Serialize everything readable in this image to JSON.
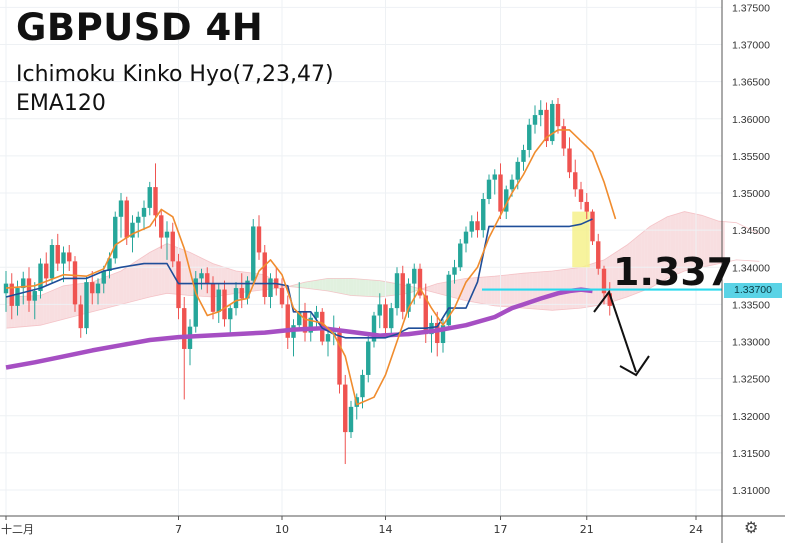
{
  "chart_data": {
    "type": "candlestick",
    "title": "GBPUSD 4H",
    "indicators": [
      "Ichimoku Kinko Hyo(7,23,47)",
      "EMA120"
    ],
    "ylim": [
      1.3065,
      1.376
    ],
    "y_ticks": [
      "1.37500",
      "1.37000",
      "1.36500",
      "1.36000",
      "1.35500",
      "1.35000",
      "1.34500",
      "1.34000",
      "1.33500",
      "1.33000",
      "1.32500",
      "1.32000",
      "1.31500",
      "1.31000"
    ],
    "x_ticks": [
      {
        "bar": 0,
        "label": "十二月"
      },
      {
        "bar": 30,
        "label": "7"
      },
      {
        "bar": 48,
        "label": "10"
      },
      {
        "bar": 66,
        "label": "14"
      },
      {
        "bar": 86,
        "label": "17"
      },
      {
        "bar": 101,
        "label": "21"
      },
      {
        "bar": 120,
        "label": "24"
      }
    ],
    "current_price": "1.33700",
    "annotation": "1.337",
    "key_level": 1.337,
    "colors": {
      "up": "#26a69a",
      "down": "#ef5350",
      "tenkan": "#f08c2e",
      "kijun": "#1f4e99",
      "ema": "#a64fc3",
      "level": "#2bd9ee",
      "cloud_bear": "#f6d3d6",
      "cloud_bull": "#d7ecd4",
      "highlight": "#f5f084"
    },
    "candles": [
      [
        1.3365,
        1.3395,
        1.334,
        1.3378
      ],
      [
        1.3378,
        1.3392,
        1.333,
        1.3348
      ],
      [
        1.3348,
        1.3382,
        1.3335,
        1.3372
      ],
      [
        1.3372,
        1.3394,
        1.335,
        1.3385
      ],
      [
        1.3385,
        1.34,
        1.334,
        1.3355
      ],
      [
        1.3355,
        1.338,
        1.333,
        1.3368
      ],
      [
        1.3368,
        1.3412,
        1.3358,
        1.3405
      ],
      [
        1.3405,
        1.342,
        1.3375,
        1.3385
      ],
      [
        1.3385,
        1.3438,
        1.3378,
        1.343
      ],
      [
        1.343,
        1.3445,
        1.3395,
        1.3405
      ],
      [
        1.3405,
        1.3428,
        1.338,
        1.342
      ],
      [
        1.342,
        1.343,
        1.3395,
        1.3408
      ],
      [
        1.3408,
        1.3415,
        1.334,
        1.335
      ],
      [
        1.335,
        1.3362,
        1.3305,
        1.3318
      ],
      [
        1.3318,
        1.3388,
        1.331,
        1.338
      ],
      [
        1.338,
        1.3395,
        1.335,
        1.3365
      ],
      [
        1.3365,
        1.3385,
        1.335,
        1.3378
      ],
      [
        1.3378,
        1.3402,
        1.3365,
        1.3395
      ],
      [
        1.3395,
        1.342,
        1.3385,
        1.3412
      ],
      [
        1.3412,
        1.3475,
        1.3405,
        1.3468
      ],
      [
        1.3468,
        1.35,
        1.344,
        1.349
      ],
      [
        1.349,
        1.3495,
        1.343,
        1.344
      ],
      [
        1.344,
        1.347,
        1.342,
        1.346
      ],
      [
        1.346,
        1.3475,
        1.344,
        1.3468
      ],
      [
        1.3468,
        1.349,
        1.345,
        1.348
      ],
      [
        1.348,
        1.3515,
        1.347,
        1.3508
      ],
      [
        1.3508,
        1.354,
        1.3455,
        1.347
      ],
      [
        1.347,
        1.3478,
        1.3425,
        1.344
      ],
      [
        1.344,
        1.3462,
        1.341,
        1.3448
      ],
      [
        1.3448,
        1.346,
        1.34,
        1.3408
      ],
      [
        1.3408,
        1.3418,
        1.333,
        1.3345
      ],
      [
        1.3345,
        1.336,
        1.3222,
        1.329
      ],
      [
        1.329,
        1.333,
        1.3268,
        1.332
      ],
      [
        1.332,
        1.3395,
        1.3312,
        1.3385
      ],
      [
        1.3385,
        1.3398,
        1.337,
        1.3392
      ],
      [
        1.3392,
        1.34,
        1.3365,
        1.3378
      ],
      [
        1.3378,
        1.3388,
        1.333,
        1.334
      ],
      [
        1.334,
        1.3378,
        1.3325,
        1.337
      ],
      [
        1.337,
        1.3382,
        1.332,
        1.333
      ],
      [
        1.333,
        1.335,
        1.331,
        1.3345
      ],
      [
        1.3345,
        1.338,
        1.3335,
        1.3372
      ],
      [
        1.3372,
        1.3392,
        1.3345,
        1.3358
      ],
      [
        1.3358,
        1.3388,
        1.335,
        1.3382
      ],
      [
        1.3382,
        1.3465,
        1.3375,
        1.3455
      ],
      [
        1.3455,
        1.347,
        1.341,
        1.342
      ],
      [
        1.342,
        1.343,
        1.335,
        1.336
      ],
      [
        1.336,
        1.3392,
        1.3345,
        1.3385
      ],
      [
        1.3385,
        1.34,
        1.3362,
        1.3372
      ],
      [
        1.3372,
        1.3385,
        1.3345,
        1.335
      ],
      [
        1.335,
        1.3362,
        1.329,
        1.3305
      ],
      [
        1.3305,
        1.333,
        1.328,
        1.3322
      ],
      [
        1.3322,
        1.338,
        1.3315,
        1.334
      ],
      [
        1.334,
        1.3352,
        1.33,
        1.3312
      ],
      [
        1.3312,
        1.334,
        1.33,
        1.3332
      ],
      [
        1.3332,
        1.3348,
        1.3318,
        1.334
      ],
      [
        1.334,
        1.3345,
        1.3295,
        1.33
      ],
      [
        1.33,
        1.332,
        1.328,
        1.331
      ],
      [
        1.331,
        1.3335,
        1.3295,
        1.3312
      ],
      [
        1.3312,
        1.332,
        1.323,
        1.3242
      ],
      [
        1.3242,
        1.3255,
        1.3135,
        1.3178
      ],
      [
        1.3178,
        1.322,
        1.317,
        1.3212
      ],
      [
        1.3212,
        1.323,
        1.3195,
        1.3225
      ],
      [
        1.3225,
        1.3262,
        1.321,
        1.3255
      ],
      [
        1.3255,
        1.331,
        1.3245,
        1.33
      ],
      [
        1.33,
        1.334,
        1.3292,
        1.3335
      ],
      [
        1.3335,
        1.3365,
        1.3318,
        1.335
      ],
      [
        1.335,
        1.3358,
        1.3305,
        1.3318
      ],
      [
        1.3318,
        1.3352,
        1.331,
        1.3345
      ],
      [
        1.3345,
        1.34,
        1.3335,
        1.3392
      ],
      [
        1.3392,
        1.3402,
        1.333,
        1.334
      ],
      [
        1.334,
        1.3385,
        1.3332,
        1.3378
      ],
      [
        1.3378,
        1.3405,
        1.335,
        1.3398
      ],
      [
        1.3398,
        1.3405,
        1.3358,
        1.3362
      ],
      [
        1.3362,
        1.3378,
        1.3298,
        1.331
      ],
      [
        1.331,
        1.3335,
        1.3285,
        1.3325
      ],
      [
        1.3325,
        1.334,
        1.328,
        1.3298
      ],
      [
        1.3298,
        1.333,
        1.3285,
        1.3322
      ],
      [
        1.3322,
        1.3395,
        1.3318,
        1.339
      ],
      [
        1.339,
        1.341,
        1.3378,
        1.34
      ],
      [
        1.34,
        1.3438,
        1.3395,
        1.3432
      ],
      [
        1.3432,
        1.3455,
        1.342,
        1.3448
      ],
      [
        1.3448,
        1.347,
        1.344,
        1.3462
      ],
      [
        1.3462,
        1.3475,
        1.344,
        1.345
      ],
      [
        1.345,
        1.35,
        1.344,
        1.3492
      ],
      [
        1.3492,
        1.3525,
        1.3485,
        1.3518
      ],
      [
        1.3518,
        1.3532,
        1.3498,
        1.3525
      ],
      [
        1.3525,
        1.354,
        1.3465,
        1.3475
      ],
      [
        1.3475,
        1.351,
        1.3465,
        1.3505
      ],
      [
        1.3505,
        1.3525,
        1.3495,
        1.3518
      ],
      [
        1.3518,
        1.3548,
        1.3505,
        1.3542
      ],
      [
        1.3542,
        1.3565,
        1.353,
        1.3558
      ],
      [
        1.3558,
        1.36,
        1.3548,
        1.3592
      ],
      [
        1.3592,
        1.3618,
        1.358,
        1.3605
      ],
      [
        1.3605,
        1.3625,
        1.359,
        1.3612
      ],
      [
        1.3612,
        1.3622,
        1.3562,
        1.357
      ],
      [
        1.357,
        1.3625,
        1.3565,
        1.362
      ],
      [
        1.362,
        1.3628,
        1.358,
        1.359
      ],
      [
        1.359,
        1.36,
        1.355,
        1.356
      ],
      [
        1.356,
        1.3575,
        1.352,
        1.3528
      ],
      [
        1.3528,
        1.3545,
        1.3495,
        1.3505
      ],
      [
        1.3505,
        1.3515,
        1.3478,
        1.3488
      ],
      [
        1.3488,
        1.35,
        1.3465,
        1.3475
      ],
      [
        1.3475,
        1.3478,
        1.343,
        1.3435
      ],
      [
        1.3435,
        1.3445,
        1.339,
        1.3398
      ],
      [
        1.3398,
        1.3402,
        1.335,
        1.3365
      ],
      [
        1.3365,
        1.338,
        1.3335,
        1.3348
      ]
    ],
    "tenkan": [
      [
        0,
        1.3372
      ],
      [
        5,
        1.3375
      ],
      [
        10,
        1.339
      ],
      [
        14,
        1.3388
      ],
      [
        17,
        1.3398
      ],
      [
        19,
        1.343
      ],
      [
        22,
        1.3445
      ],
      [
        25,
        1.3455
      ],
      [
        27,
        1.3478
      ],
      [
        29,
        1.3468
      ],
      [
        31,
        1.3425
      ],
      [
        33,
        1.3365
      ],
      [
        35,
        1.3335
      ],
      [
        37,
        1.334
      ],
      [
        40,
        1.3355
      ],
      [
        42,
        1.3358
      ],
      [
        44,
        1.3395
      ],
      [
        46,
        1.341
      ],
      [
        48,
        1.339
      ],
      [
        50,
        1.3345
      ],
      [
        52,
        1.333
      ],
      [
        55,
        1.3325
      ],
      [
        57,
        1.331
      ],
      [
        59,
        1.328
      ],
      [
        61,
        1.3215
      ],
      [
        64,
        1.3225
      ],
      [
        66,
        1.3255
      ],
      [
        68,
        1.33
      ],
      [
        70,
        1.3345
      ],
      [
        72,
        1.3372
      ],
      [
        74,
        1.3345
      ],
      [
        76,
        1.3322
      ],
      [
        78,
        1.3345
      ],
      [
        80,
        1.338
      ],
      [
        82,
        1.34
      ],
      [
        84,
        1.344
      ],
      [
        86,
        1.347
      ],
      [
        88,
        1.35
      ],
      [
        90,
        1.3525
      ],
      [
        92,
        1.3555
      ],
      [
        94,
        1.3575
      ],
      [
        96,
        1.3585
      ],
      [
        98,
        1.3585
      ],
      [
        100,
        1.357
      ],
      [
        102,
        1.3555
      ],
      [
        104,
        1.3515
      ],
      [
        106,
        1.3465
      ]
    ],
    "kijun": [
      [
        0,
        1.336
      ],
      [
        6,
        1.3372
      ],
      [
        10,
        1.3385
      ],
      [
        14,
        1.3385
      ],
      [
        17,
        1.3395
      ],
      [
        20,
        1.34
      ],
      [
        24,
        1.3405
      ],
      [
        28,
        1.3405
      ],
      [
        30,
        1.3378
      ],
      [
        36,
        1.3378
      ],
      [
        42,
        1.3378
      ],
      [
        47,
        1.3378
      ],
      [
        49,
        1.3375
      ],
      [
        50,
        1.334
      ],
      [
        53,
        1.334
      ],
      [
        55,
        1.3318
      ],
      [
        57,
        1.331
      ],
      [
        59,
        1.3305
      ],
      [
        62,
        1.3305
      ],
      [
        64,
        1.3305
      ],
      [
        66,
        1.3305
      ],
      [
        68,
        1.331
      ],
      [
        70,
        1.3318
      ],
      [
        73,
        1.3318
      ],
      [
        75,
        1.332
      ],
      [
        77,
        1.3345
      ],
      [
        80,
        1.3345
      ],
      [
        82,
        1.338
      ],
      [
        84,
        1.3455
      ],
      [
        87,
        1.3455
      ],
      [
        92,
        1.3455
      ],
      [
        96,
        1.3455
      ],
      [
        98,
        1.3455
      ],
      [
        100,
        1.3458
      ],
      [
        102,
        1.3465
      ]
    ],
    "ema": [
      [
        0,
        1.3265
      ],
      [
        5,
        1.3272
      ],
      [
        10,
        1.328
      ],
      [
        15,
        1.3288
      ],
      [
        20,
        1.3295
      ],
      [
        25,
        1.3302
      ],
      [
        30,
        1.3306
      ],
      [
        35,
        1.3308
      ],
      [
        40,
        1.331
      ],
      [
        45,
        1.3312
      ],
      [
        50,
        1.3316
      ],
      [
        55,
        1.3318
      ],
      [
        60,
        1.3313
      ],
      [
        65,
        1.3308
      ],
      [
        70,
        1.331
      ],
      [
        75,
        1.3315
      ],
      [
        80,
        1.3322
      ],
      [
        85,
        1.3333
      ],
      [
        88,
        1.3345
      ],
      [
        90,
        1.335
      ],
      [
        93,
        1.3358
      ],
      [
        96,
        1.3365
      ],
      [
        98,
        1.3368
      ],
      [
        100,
        1.337
      ],
      [
        102,
        1.3368
      ]
    ],
    "cloud_a": [
      [
        0,
        1.336
      ],
      [
        6,
        1.3362
      ],
      [
        10,
        1.3375
      ],
      [
        15,
        1.338
      ],
      [
        20,
        1.3395
      ],
      [
        25,
        1.342
      ],
      [
        28,
        1.3432
      ],
      [
        32,
        1.342
      ],
      [
        36,
        1.3405
      ],
      [
        40,
        1.3395
      ],
      [
        45,
        1.339
      ],
      [
        48,
        1.3375
      ],
      [
        52,
        1.3372
      ],
      [
        56,
        1.3368
      ],
      [
        60,
        1.3362
      ],
      [
        65,
        1.336
      ],
      [
        70,
        1.3365
      ],
      [
        75,
        1.3378
      ],
      [
        80,
        1.3385
      ],
      [
        85,
        1.3388
      ],
      [
        90,
        1.3392
      ],
      [
        95,
        1.3395
      ],
      [
        100,
        1.34
      ],
      [
        104,
        1.341
      ],
      [
        108,
        1.343
      ],
      [
        112,
        1.3455
      ],
      [
        115,
        1.3468
      ],
      [
        118,
        1.3475
      ],
      [
        121,
        1.347
      ],
      [
        124,
        1.3462
      ],
      [
        127,
        1.346
      ],
      [
        131,
        1.3445
      ]
    ],
    "cloud_b": [
      [
        0,
        1.3318
      ],
      [
        6,
        1.3322
      ],
      [
        10,
        1.333
      ],
      [
        15,
        1.334
      ],
      [
        20,
        1.335
      ],
      [
        25,
        1.336
      ],
      [
        28,
        1.3365
      ],
      [
        32,
        1.3362
      ],
      [
        36,
        1.336
      ],
      [
        40,
        1.3365
      ],
      [
        45,
        1.337
      ],
      [
        48,
        1.3372
      ],
      [
        52,
        1.338
      ],
      [
        56,
        1.3385
      ],
      [
        60,
        1.3385
      ],
      [
        65,
        1.3382
      ],
      [
        70,
        1.3375
      ],
      [
        75,
        1.3365
      ],
      [
        80,
        1.3355
      ],
      [
        85,
        1.3348
      ],
      [
        90,
        1.3345
      ],
      [
        95,
        1.3342
      ],
      [
        100,
        1.3345
      ],
      [
        104,
        1.335
      ],
      [
        108,
        1.336
      ],
      [
        112,
        1.3372
      ],
      [
        115,
        1.3385
      ],
      [
        118,
        1.3395
      ],
      [
        121,
        1.34
      ],
      [
        124,
        1.3405
      ],
      [
        127,
        1.341
      ],
      [
        131,
        1.3408
      ]
    ],
    "highlight": {
      "from_bar": 99,
      "to_bar": 101,
      "y_from": 1.34,
      "y_to": 1.3475
    }
  }
}
